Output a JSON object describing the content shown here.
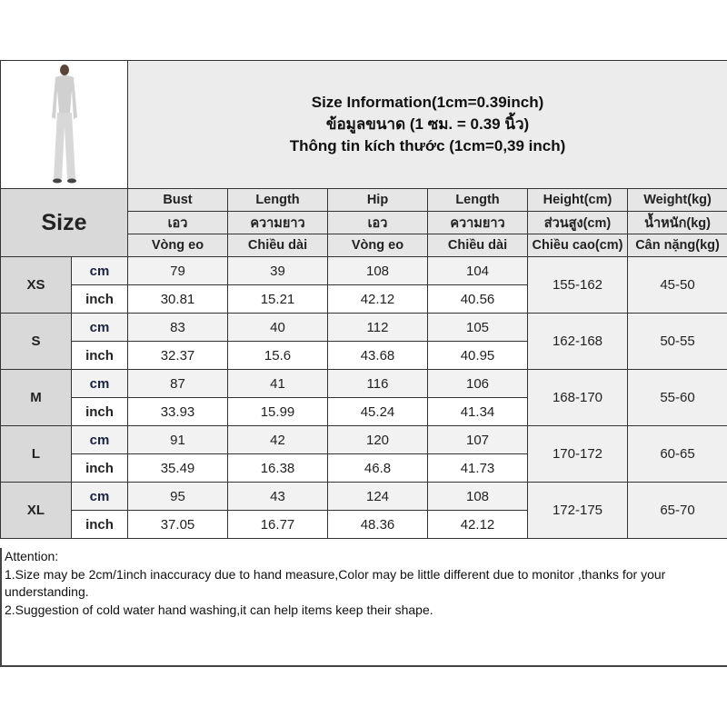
{
  "title_lines": [
    "Size Information(1cm=0.39inch)",
    "ข้อมูลขนาด (1 ซม. = 0.39 นิ้ว)",
    "Thông tin kích thước (1cm=0,39 inch)"
  ],
  "product_image": "woman-in-grey-long-sleeve-jumpsuit",
  "size_header": "Size",
  "columns": [
    [
      "Bust",
      "เอว",
      "Vòng eo"
    ],
    [
      "Length",
      "ความยาว",
      "Chiều dài"
    ],
    [
      "Hip",
      "เอว",
      "Vòng eo"
    ],
    [
      "Length",
      "ความยาว",
      "Chiều dài"
    ],
    [
      "Height(cm)",
      "ส่วนสูง(cm)",
      "Chiều cao(cm)"
    ],
    [
      "Weight(kg)",
      "น้ำหนัก(kg)",
      "Cân nặng(kg)"
    ]
  ],
  "units": [
    "cm",
    "inch"
  ],
  "rows": [
    {
      "size": "XS",
      "cm": [
        "79",
        "39",
        "108",
        "104"
      ],
      "inch": [
        "30.81",
        "15.21",
        "42.12",
        "40.56"
      ],
      "height": "155-162",
      "weight": "45-50"
    },
    {
      "size": "S",
      "cm": [
        "83",
        "40",
        "112",
        "105"
      ],
      "inch": [
        "32.37",
        "15.6",
        "43.68",
        "40.95"
      ],
      "height": "162-168",
      "weight": "50-55"
    },
    {
      "size": "M",
      "cm": [
        "87",
        "41",
        "116",
        "106"
      ],
      "inch": [
        "33.93",
        "15.99",
        "45.24",
        "41.34"
      ],
      "height": "168-170",
      "weight": "55-60"
    },
    {
      "size": "L",
      "cm": [
        "91",
        "42",
        "120",
        "107"
      ],
      "inch": [
        "35.49",
        "16.38",
        "46.8",
        "41.73"
      ],
      "height": "170-172",
      "weight": "60-65"
    },
    {
      "size": "XL",
      "cm": [
        "95",
        "43",
        "124",
        "108"
      ],
      "inch": [
        "37.05",
        "16.77",
        "48.36",
        "42.12"
      ],
      "height": "172-175",
      "weight": "65-70"
    }
  ],
  "attention": {
    "heading": "Attention:",
    "notes": [
      "1.Size may be 2cm/1inch inaccuracy due to hand measure,Color may be little different due to monitor ,thanks for your understanding.",
      "2.Suggestion of cold water hand washing,it can help items keep their shape."
    ]
  }
}
